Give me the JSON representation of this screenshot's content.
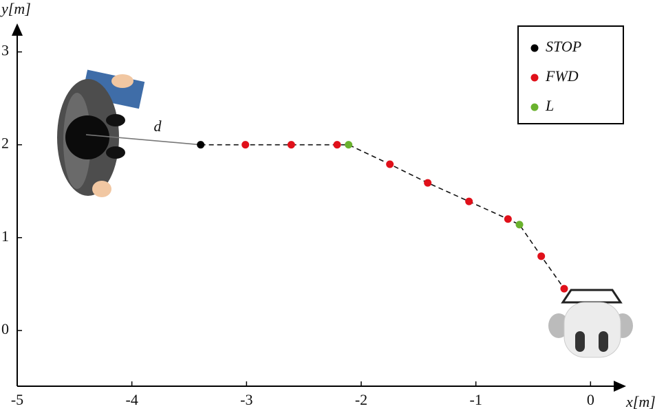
{
  "chart_data": {
    "type": "scatter",
    "xlabel": "x[m]",
    "ylabel": "y[m]",
    "xlim": [
      -5,
      0.28
    ],
    "ylim": [
      -0.6,
      3.3
    ],
    "xticks": [
      -5,
      -4,
      -3,
      -2,
      -1,
      0
    ],
    "yticks": [
      0,
      1,
      2,
      3
    ],
    "legend": "upper right",
    "annotations": [
      "d"
    ],
    "series": [
      {
        "name": "STOP",
        "color": "#000000",
        "x": [
          -3.4
        ],
        "values": [
          2.0
        ]
      },
      {
        "name": "FWD",
        "color": "#e0101a",
        "x": [
          -3.01,
          -2.61,
          -2.21,
          -1.75,
          -1.42,
          -1.06,
          -0.72,
          -0.43,
          -0.23
        ],
        "values": [
          2.0,
          2.0,
          2.0,
          1.79,
          1.59,
          1.39,
          1.2,
          0.8,
          0.45
        ]
      },
      {
        "name": "L",
        "color": "#6ab22e",
        "x": [
          -2.11,
          -0.62
        ],
        "values": [
          2.0,
          1.14
        ]
      }
    ]
  }
}
